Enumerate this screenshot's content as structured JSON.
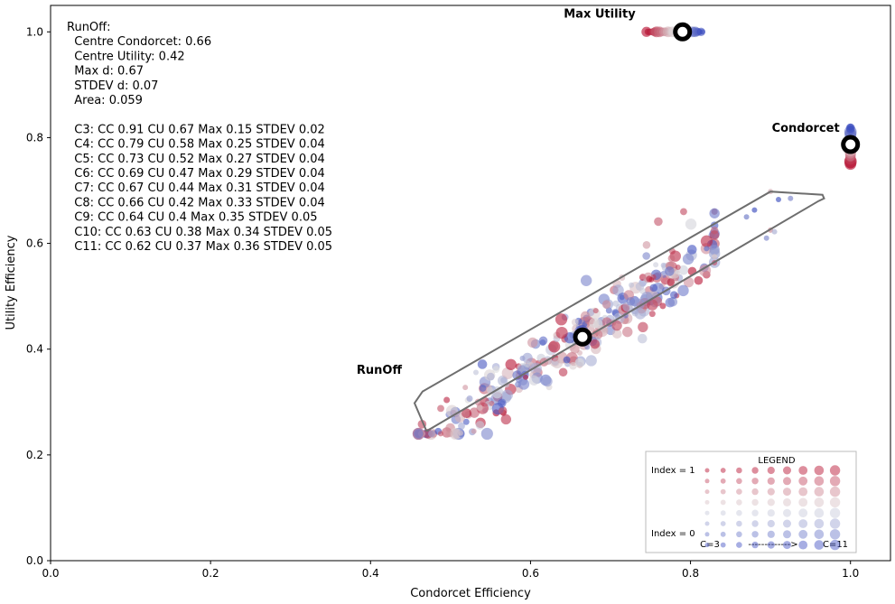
{
  "chart_data": {
    "type": "scatter",
    "xlabel": "Condorcet Efficiency",
    "ylabel": "Utility Efficiency",
    "xlim": [
      0,
      1.05
    ],
    "ylim": [
      0,
      1.05
    ],
    "xticks": [
      "0.0",
      "0.2",
      "0.4",
      "0.6",
      "0.8",
      "1.0"
    ],
    "yticks": [
      "0.0",
      "0.2",
      "0.4",
      "0.6",
      "0.8",
      "1.0"
    ],
    "xtick_values": [
      0,
      0.2,
      0.4,
      0.6,
      0.8,
      1.0
    ],
    "ytick_values": [
      0,
      0.2,
      0.4,
      0.6,
      0.8,
      1.0
    ],
    "stats": [
      "RunOff:",
      "  Centre Condorcet: 0.66",
      "  Centre Utility: 0.42",
      "  Max d: 0.67",
      "  STDEV d: 0.07",
      "  Area: 0.059",
      "",
      "  C3: CC 0.91 CU 0.67 Max 0.15 STDEV 0.02",
      "  C4: CC 0.79 CU 0.58 Max 0.25 STDEV 0.04",
      "  C5: CC 0.73 CU 0.52 Max 0.27 STDEV 0.04",
      "  C6: CC 0.69 CU 0.47 Max 0.29 STDEV 0.04",
      "  C7: CC 0.67 CU 0.44 Max 0.31 STDEV 0.04",
      "  C8: CC 0.66 CU 0.42 Max 0.33 STDEV 0.04",
      "  C9: CC 0.64 CU 0.4 Max 0.35 STDEV 0.05",
      "  C10: CC 0.63 CU 0.38 Max 0.34 STDEV 0.05",
      "  C11: CC 0.62 CU 0.37 Max 0.36 STDEV 0.05"
    ],
    "reference_points": [
      {
        "label": "Max Utility",
        "x": 0.79,
        "y": 1.0
      },
      {
        "label": "Condorcet",
        "x": 1.0,
        "y": 0.787
      },
      {
        "label": "RunOff",
        "x": 0.665,
        "y": 0.423
      }
    ],
    "hull": [
      [
        0.47,
        0.245
      ],
      [
        0.455,
        0.298
      ],
      [
        0.465,
        0.32
      ],
      [
        0.9,
        0.698
      ],
      [
        0.965,
        0.692
      ],
      [
        0.967,
        0.685
      ],
      [
        0.96,
        0.68
      ]
    ],
    "max_utility_cluster": {
      "x_start": 0.745,
      "x_end": 0.815,
      "y": 1.0
    },
    "condorcet_cluster": {
      "x": 1.0,
      "y_start": 0.75,
      "y_end": 0.82
    },
    "scatter_seed": 7,
    "scatter_count": 340,
    "legend": {
      "title": "LEGEND",
      "top_label": "Index = 1",
      "bottom_label": "Index = 0",
      "left_label": "C=3",
      "arrow_label": "------------->",
      "right_label": "C=11"
    },
    "colors": {
      "low": "#3b4cc0",
      "mid": "#dddddd",
      "high": "#b40426",
      "hull": "#6e6e6e"
    }
  }
}
